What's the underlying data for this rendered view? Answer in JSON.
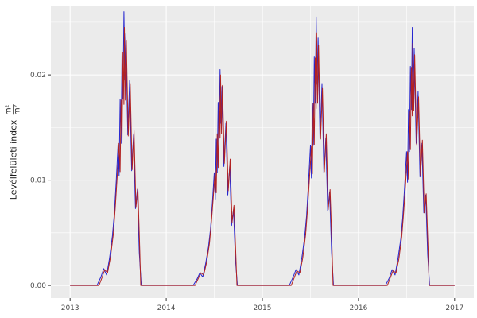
{
  "chart_data": {
    "type": "line",
    "title": "",
    "xlabel": "",
    "ylabel": {
      "text": "Levélfelületi index",
      "fraction_numerator": "m²",
      "fraction_denominator": "m²"
    },
    "xlim": [
      2012.8,
      2017.2
    ],
    "ylim": [
      -0.0012,
      0.0265
    ],
    "grid": "on",
    "legend": "none",
    "panel_background": "#EBEBEB",
    "grid_major_color": "#FFFFFF",
    "grid_minor_color": "#FFFFFF",
    "axis_text_color": "#4D4D4D",
    "tick_mark_color": "#333333",
    "x_ticks": {
      "values": [
        2013,
        2014,
        2015,
        2016,
        2017
      ],
      "labels": [
        "2013",
        "2014",
        "2015",
        "2016",
        "2017"
      ]
    },
    "x_minor": [
      2013.5,
      2014.5,
      2015.5,
      2016.5
    ],
    "y_ticks": {
      "values": [
        0,
        0.01,
        0.02
      ],
      "labels": [
        "0.00",
        "0.01",
        "0.02"
      ]
    },
    "y_minor": [
      0.005,
      0.015,
      0.025
    ],
    "series": [
      {
        "name": "series-blue",
        "color": "#2525D0",
        "points": [
          [
            2013.0,
            0
          ],
          [
            2013.28,
            0
          ],
          [
            2013.32,
            0.0008
          ],
          [
            2013.35,
            0.0016
          ],
          [
            2013.38,
            0.001
          ],
          [
            2013.41,
            0.0026
          ],
          [
            2013.44,
            0.0047
          ],
          [
            2013.46,
            0.0068
          ],
          [
            2013.48,
            0.0099
          ],
          [
            2013.5,
            0.0135
          ],
          [
            2013.51,
            0.0104
          ],
          [
            2013.52,
            0.0177
          ],
          [
            2013.53,
            0.0135
          ],
          [
            2013.54,
            0.0221
          ],
          [
            2013.55,
            0.0177
          ],
          [
            2013.56,
            0.026
          ],
          [
            2013.57,
            0.0195
          ],
          [
            2013.58,
            0.0239
          ],
          [
            2013.6,
            0.0143
          ],
          [
            2013.62,
            0.0195
          ],
          [
            2013.64,
            0.0109
          ],
          [
            2013.66,
            0.0143
          ],
          [
            2013.68,
            0.0073
          ],
          [
            2013.7,
            0.0091
          ],
          [
            2013.72,
            0.0031
          ],
          [
            2013.74,
            0
          ],
          [
            2014.28,
            0
          ],
          [
            2014.32,
            0.0006
          ],
          [
            2014.35,
            0.0012
          ],
          [
            2014.38,
            0.0008
          ],
          [
            2014.41,
            0.0021
          ],
          [
            2014.44,
            0.0037
          ],
          [
            2014.46,
            0.0053
          ],
          [
            2014.48,
            0.0078
          ],
          [
            2014.5,
            0.0107
          ],
          [
            2014.51,
            0.0082
          ],
          [
            2014.52,
            0.0139
          ],
          [
            2014.53,
            0.0107
          ],
          [
            2014.54,
            0.0174
          ],
          [
            2014.55,
            0.0139
          ],
          [
            2014.56,
            0.0205
          ],
          [
            2014.57,
            0.0154
          ],
          [
            2014.58,
            0.0189
          ],
          [
            2014.6,
            0.0113
          ],
          [
            2014.62,
            0.0154
          ],
          [
            2014.64,
            0.0086
          ],
          [
            2014.66,
            0.0113
          ],
          [
            2014.68,
            0.0057
          ],
          [
            2014.7,
            0.0072
          ],
          [
            2014.72,
            0.0025
          ],
          [
            2014.74,
            0
          ],
          [
            2015.28,
            0
          ],
          [
            2015.32,
            0.0008
          ],
          [
            2015.35,
            0.0015
          ],
          [
            2015.38,
            0.001
          ],
          [
            2015.41,
            0.0026
          ],
          [
            2015.44,
            0.0046
          ],
          [
            2015.46,
            0.0066
          ],
          [
            2015.48,
            0.0097
          ],
          [
            2015.5,
            0.0133
          ],
          [
            2015.51,
            0.0102
          ],
          [
            2015.52,
            0.0173
          ],
          [
            2015.53,
            0.0133
          ],
          [
            2015.54,
            0.0217
          ],
          [
            2015.55,
            0.0173
          ],
          [
            2015.56,
            0.0255
          ],
          [
            2015.57,
            0.0191
          ],
          [
            2015.58,
            0.0235
          ],
          [
            2015.6,
            0.014
          ],
          [
            2015.62,
            0.0191
          ],
          [
            2015.64,
            0.0107
          ],
          [
            2015.66,
            0.014
          ],
          [
            2015.68,
            0.0071
          ],
          [
            2015.7,
            0.0089
          ],
          [
            2015.72,
            0.0031
          ],
          [
            2015.74,
            0
          ],
          [
            2016.28,
            0
          ],
          [
            2016.32,
            0.0007
          ],
          [
            2016.35,
            0.0015
          ],
          [
            2016.38,
            0.001
          ],
          [
            2016.41,
            0.0025
          ],
          [
            2016.44,
            0.0044
          ],
          [
            2016.46,
            0.0064
          ],
          [
            2016.48,
            0.0093
          ],
          [
            2016.5,
            0.0127
          ],
          [
            2016.51,
            0.0098
          ],
          [
            2016.52,
            0.0167
          ],
          [
            2016.53,
            0.0127
          ],
          [
            2016.54,
            0.0208
          ],
          [
            2016.55,
            0.0167
          ],
          [
            2016.56,
            0.0245
          ],
          [
            2016.57,
            0.0184
          ],
          [
            2016.58,
            0.0225
          ],
          [
            2016.6,
            0.0135
          ],
          [
            2016.62,
            0.0184
          ],
          [
            2016.64,
            0.0103
          ],
          [
            2016.66,
            0.0135
          ],
          [
            2016.68,
            0.0069
          ],
          [
            2016.7,
            0.0086
          ],
          [
            2016.72,
            0.0029
          ],
          [
            2016.74,
            0
          ],
          [
            2017.0,
            0
          ]
        ]
      },
      {
        "name": "series-red",
        "color": "#B22222",
        "points": [
          [
            2013.0,
            0
          ],
          [
            2013.3,
            0
          ],
          [
            2013.33,
            0.0007
          ],
          [
            2013.36,
            0.0015
          ],
          [
            2013.39,
            0.0012
          ],
          [
            2013.42,
            0.0027
          ],
          [
            2013.45,
            0.0049
          ],
          [
            2013.47,
            0.0074
          ],
          [
            2013.49,
            0.0103
          ],
          [
            2013.51,
            0.0135
          ],
          [
            2013.52,
            0.0108
          ],
          [
            2013.53,
            0.0176
          ],
          [
            2013.54,
            0.0137
          ],
          [
            2013.55,
            0.0221
          ],
          [
            2013.56,
            0.0172
          ],
          [
            2013.565,
            0.0245
          ],
          [
            2013.575,
            0.0176
          ],
          [
            2013.585,
            0.0233
          ],
          [
            2013.605,
            0.0142
          ],
          [
            2013.625,
            0.0191
          ],
          [
            2013.645,
            0.011
          ],
          [
            2013.665,
            0.0147
          ],
          [
            2013.685,
            0.0074
          ],
          [
            2013.705,
            0.0093
          ],
          [
            2013.725,
            0.0034
          ],
          [
            2013.735,
            0
          ],
          [
            2014.3,
            0
          ],
          [
            2014.33,
            0.0006
          ],
          [
            2014.36,
            0.0012
          ],
          [
            2014.39,
            0.001
          ],
          [
            2014.42,
            0.0022
          ],
          [
            2014.45,
            0.004
          ],
          [
            2014.47,
            0.006
          ],
          [
            2014.49,
            0.0084
          ],
          [
            2014.51,
            0.011
          ],
          [
            2014.52,
            0.0088
          ],
          [
            2014.53,
            0.0144
          ],
          [
            2014.54,
            0.0112
          ],
          [
            2014.55,
            0.018
          ],
          [
            2014.56,
            0.014
          ],
          [
            2014.565,
            0.02
          ],
          [
            2014.575,
            0.0144
          ],
          [
            2014.585,
            0.019
          ],
          [
            2014.605,
            0.0116
          ],
          [
            2014.625,
            0.0156
          ],
          [
            2014.645,
            0.009
          ],
          [
            2014.665,
            0.012
          ],
          [
            2014.685,
            0.006
          ],
          [
            2014.705,
            0.0076
          ],
          [
            2014.725,
            0.0028
          ],
          [
            2014.735,
            0
          ],
          [
            2015.3,
            0
          ],
          [
            2015.33,
            0.0007
          ],
          [
            2015.36,
            0.0014
          ],
          [
            2015.39,
            0.0012
          ],
          [
            2015.42,
            0.0026
          ],
          [
            2015.45,
            0.0048
          ],
          [
            2015.47,
            0.0072
          ],
          [
            2015.49,
            0.0101
          ],
          [
            2015.51,
            0.0132
          ],
          [
            2015.52,
            0.0106
          ],
          [
            2015.53,
            0.0173
          ],
          [
            2015.54,
            0.0134
          ],
          [
            2015.55,
            0.0216
          ],
          [
            2015.56,
            0.0168
          ],
          [
            2015.565,
            0.024
          ],
          [
            2015.575,
            0.0173
          ],
          [
            2015.585,
            0.0228
          ],
          [
            2015.605,
            0.0139
          ],
          [
            2015.625,
            0.0187
          ],
          [
            2015.645,
            0.0108
          ],
          [
            2015.665,
            0.0144
          ],
          [
            2015.685,
            0.0072
          ],
          [
            2015.705,
            0.0091
          ],
          [
            2015.725,
            0.0034
          ],
          [
            2015.735,
            0
          ],
          [
            2016.3,
            0
          ],
          [
            2016.33,
            0.0007
          ],
          [
            2016.36,
            0.0014
          ],
          [
            2016.39,
            0.0012
          ],
          [
            2016.42,
            0.0025
          ],
          [
            2016.45,
            0.0046
          ],
          [
            2016.47,
            0.0069
          ],
          [
            2016.49,
            0.0097
          ],
          [
            2016.51,
            0.0127
          ],
          [
            2016.52,
            0.0101
          ],
          [
            2016.53,
            0.0166
          ],
          [
            2016.54,
            0.0129
          ],
          [
            2016.55,
            0.0207
          ],
          [
            2016.56,
            0.0161
          ],
          [
            2016.565,
            0.023
          ],
          [
            2016.575,
            0.0166
          ],
          [
            2016.585,
            0.0219
          ],
          [
            2016.605,
            0.0133
          ],
          [
            2016.625,
            0.0179
          ],
          [
            2016.645,
            0.0104
          ],
          [
            2016.665,
            0.0138
          ],
          [
            2016.685,
            0.0069
          ],
          [
            2016.705,
            0.0087
          ],
          [
            2016.725,
            0.0032
          ],
          [
            2016.735,
            0
          ],
          [
            2017.0,
            0
          ]
        ]
      }
    ]
  }
}
